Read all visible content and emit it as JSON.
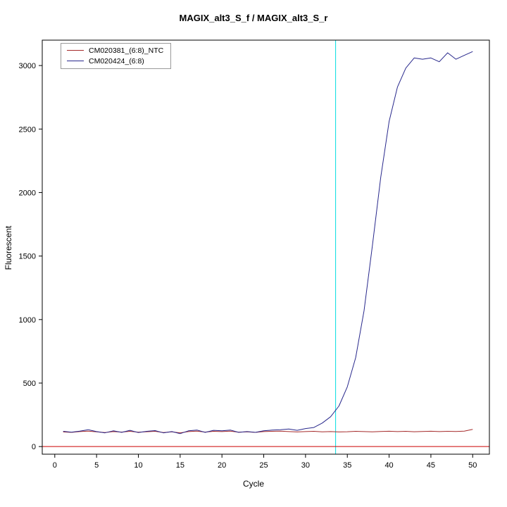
{
  "title": "MAGIX_alt3_S_f / MAGIX_alt3_S_r",
  "chart_data": {
    "type": "line",
    "title": "MAGIX_alt3_S_f / MAGIX_alt3_S_r",
    "xlabel": "Cycle",
    "ylabel": "Fluorescent",
    "xlim": [
      -1.5,
      52
    ],
    "ylim": [
      -60,
      3200
    ],
    "x_ticks": [
      0,
      5,
      10,
      15,
      20,
      25,
      30,
      35,
      40,
      45,
      50
    ],
    "y_ticks": [
      0,
      500,
      1000,
      1500,
      2000,
      2500,
      3000
    ],
    "grid": false,
    "legend_position": "top-left",
    "threshold_line": {
      "y": 0,
      "color": "#cc0000"
    },
    "ct_line": {
      "x": 33.6,
      "color": "#00dde0"
    },
    "x": [
      1,
      2,
      3,
      4,
      5,
      6,
      7,
      8,
      9,
      10,
      11,
      12,
      13,
      14,
      15,
      16,
      17,
      18,
      19,
      20,
      21,
      22,
      23,
      24,
      25,
      26,
      27,
      28,
      29,
      30,
      31,
      32,
      33,
      34,
      35,
      36,
      37,
      38,
      39,
      40,
      41,
      42,
      43,
      44,
      45,
      46,
      47,
      48,
      49,
      50
    ],
    "series": [
      {
        "name": "CM020381_(6:8)_NTC",
        "color": "#a52a2a",
        "values": [
          115,
          112,
          118,
          122,
          116,
          110,
          118,
          114,
          120,
          113,
          117,
          120,
          110,
          116,
          108,
          118,
          122,
          114,
          120,
          118,
          122,
          113,
          116,
          112,
          118,
          120,
          122,
          118,
          115,
          118,
          120,
          116,
          118,
          115,
          117,
          120,
          118,
          116,
          119,
          121,
          118,
          120,
          117,
          119,
          121,
          118,
          120,
          119,
          122,
          135
        ]
      },
      {
        "name": "CM020424_(6:8)",
        "color": "#28288c",
        "values": [
          120,
          113,
          122,
          133,
          118,
          108,
          124,
          112,
          128,
          110,
          120,
          126,
          108,
          118,
          102,
          124,
          130,
          112,
          128,
          124,
          130,
          112,
          118,
          112,
          124,
          130,
          133,
          138,
          128,
          142,
          150,
          185,
          235,
          320,
          470,
          700,
          1070,
          1580,
          2120,
          2560,
          2830,
          2980,
          3060,
          3050,
          3060,
          3030,
          3100,
          3050,
          3080,
          3110
        ]
      }
    ]
  }
}
